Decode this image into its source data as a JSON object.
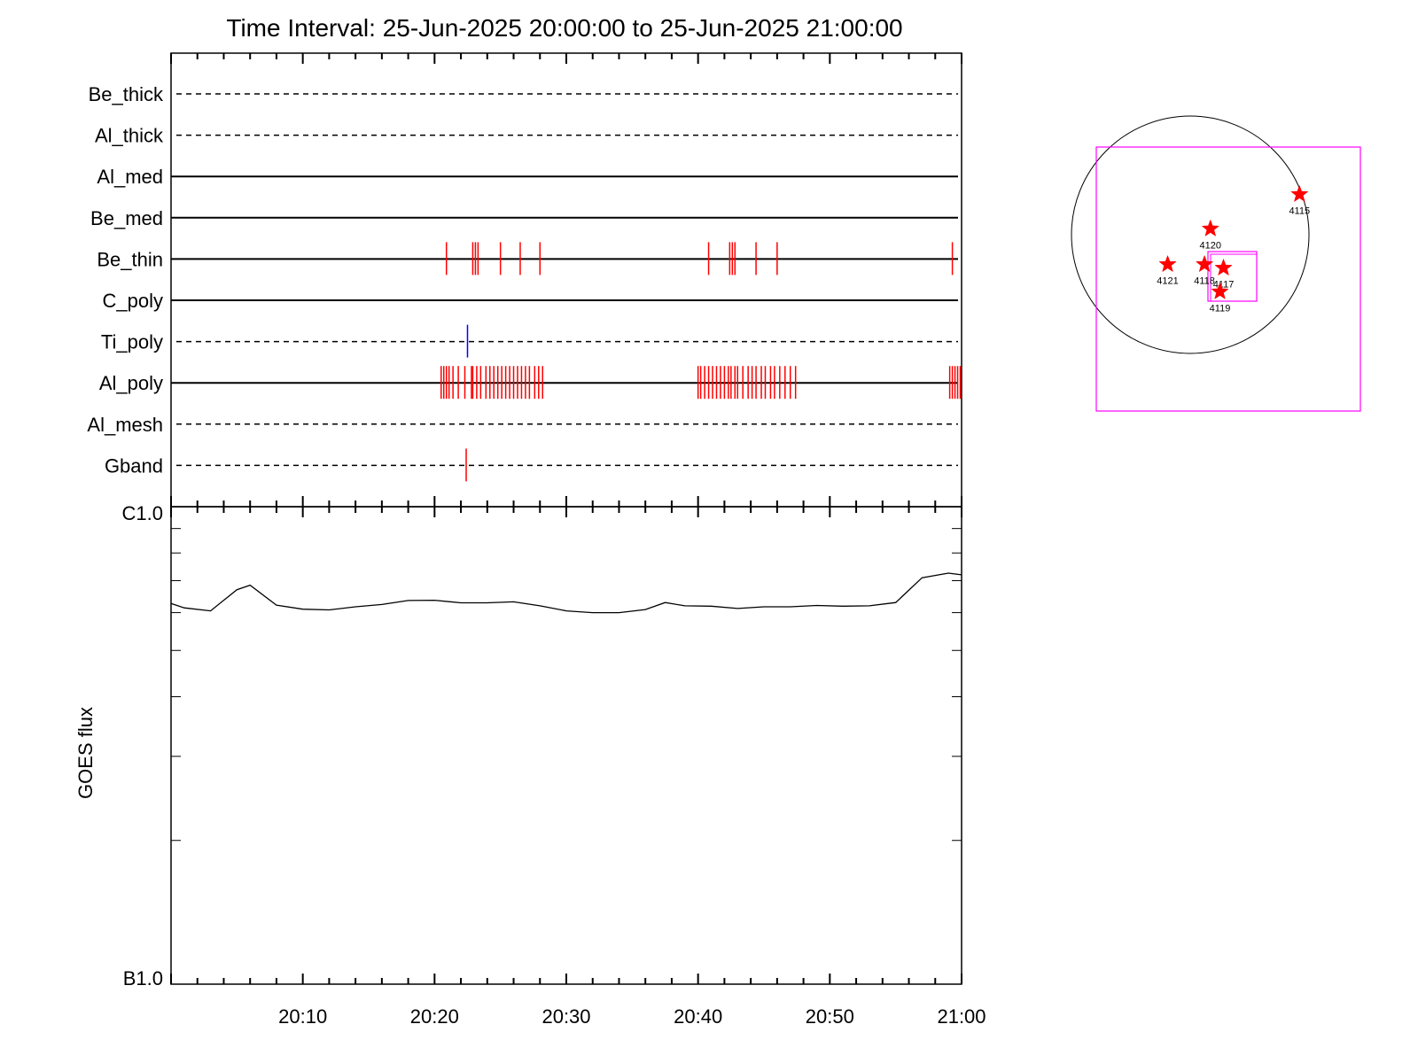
{
  "chart_data": [
    {
      "type": "timeline",
      "title": "Time Interval: 25-Jun-2025 20:00:00 to 25-Jun-2025 21:00:00",
      "x_range": [
        "20:00",
        "21:00"
      ],
      "channels": [
        {
          "name": "Be_thick",
          "line": "dashed",
          "events": [],
          "color": "#ff0000"
        },
        {
          "name": "Al_thick",
          "line": "dashed",
          "events": [],
          "color": "#ff0000"
        },
        {
          "name": "Al_med",
          "line": "solid",
          "events": [],
          "color": "#ff0000"
        },
        {
          "name": "Be_med",
          "line": "solid",
          "events": [],
          "color": "#ff0000"
        },
        {
          "name": "Be_thin",
          "line": "solid",
          "color": "#ff0000",
          "events": [
            20.9,
            22.9,
            23.1,
            23.3,
            25.0,
            26.5,
            28.0,
            40.8,
            42.4,
            42.6,
            42.8,
            44.4,
            46.0,
            59.3
          ]
        },
        {
          "name": "C_poly",
          "line": "solid",
          "events": [],
          "color": "#ff0000"
        },
        {
          "name": "Ti_poly",
          "line": "dashed",
          "color": "#0000ff",
          "events": [
            22.5
          ]
        },
        {
          "name": "Al_poly",
          "line": "solid",
          "color": "#ff0000",
          "events": [
            20.5,
            20.7,
            20.9,
            21.1,
            21.4,
            21.8,
            22.3,
            22.8,
            22.9,
            23.2,
            23.5,
            23.9,
            24.2,
            24.5,
            24.8,
            25.1,
            25.4,
            25.7,
            26.0,
            26.3,
            26.6,
            26.9,
            27.2,
            27.6,
            27.9,
            28.2,
            40.0,
            40.2,
            40.5,
            40.8,
            41.1,
            41.4,
            41.7,
            42.0,
            42.3,
            42.5,
            42.8,
            43.0,
            43.4,
            43.8,
            44.1,
            44.4,
            44.8,
            45.1,
            45.5,
            45.8,
            46.2,
            46.6,
            47.0,
            47.4,
            59.1,
            59.3,
            59.5,
            59.7,
            59.9
          ]
        },
        {
          "name": "Al_mesh",
          "line": "dashed",
          "events": [],
          "color": "#ff0000"
        },
        {
          "name": "Gband",
          "line": "dashed",
          "color": "#ff0000",
          "events": [
            22.4
          ]
        }
      ]
    },
    {
      "type": "line",
      "ylabel": "GOES flux",
      "y_scale": "log",
      "y_tick_labels": [
        "C1.0",
        "B1.0"
      ],
      "ylim": [
        1e-07,
        1e-06
      ],
      "xlim": [
        0,
        60
      ],
      "x_tick_labels": [
        "20:10",
        "20:20",
        "20:30",
        "20:40",
        "20:50",
        "21:00"
      ],
      "line_color": "#000000",
      "series": [
        {
          "x": [
            0,
            1,
            3,
            5,
            6,
            8,
            10,
            12,
            14,
            16,
            18,
            20,
            22,
            24,
            26,
            28,
            30,
            32,
            34,
            36,
            37.5,
            39,
            41,
            43,
            45,
            47,
            49,
            51,
            53,
            55,
            57,
            59,
            60
          ],
          "y": [
            6.27e-07,
            6.14e-07,
            6.05e-07,
            6.7e-07,
            6.85e-07,
            6.22e-07,
            6.1e-07,
            6.08e-07,
            6.17e-07,
            6.24e-07,
            6.36e-07,
            6.37e-07,
            6.29e-07,
            6.29e-07,
            6.32e-07,
            6.2e-07,
            6.05e-07,
            6e-07,
            6e-07,
            6.09e-07,
            6.3e-07,
            6.2e-07,
            6.19e-07,
            6.12e-07,
            6.17e-07,
            6.17e-07,
            6.21e-07,
            6.19e-07,
            6.2e-07,
            6.3e-07,
            7.1e-07,
            7.26e-07,
            7.2e-07
          ]
        }
      ]
    },
    {
      "type": "scatter",
      "description_labels": [
        "4115",
        "4120",
        "4121",
        "4118",
        "4117",
        "4119"
      ],
      "points": [
        {
          "label": "4115",
          "x": 0.92,
          "y": 0.34
        },
        {
          "label": "4120",
          "x": 0.17,
          "y": 0.05
        },
        {
          "label": "4121",
          "x": -0.19,
          "y": -0.25
        },
        {
          "label": "4118",
          "x": 0.12,
          "y": -0.25
        },
        {
          "label": "4117",
          "x": 0.28,
          "y": -0.28
        },
        {
          "label": "4119",
          "x": 0.25,
          "y": -0.48
        }
      ],
      "marker_color": "#ff0000",
      "box_color": "#ff00ff"
    }
  ]
}
